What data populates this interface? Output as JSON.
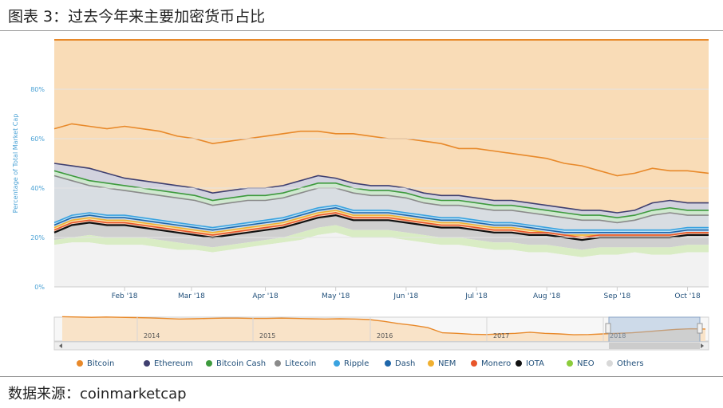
{
  "title": "图表 3：过去今年来主要加密货币占比",
  "source": "数据来源：coinmarketcap",
  "chart_data": {
    "type": "area",
    "stacking": "percent",
    "ylabel": "Percentage of Total Market Cap",
    "ylim": [
      0,
      100
    ],
    "yticks": [
      "0%",
      "20%",
      "40%",
      "60%",
      "80%"
    ],
    "ytick_values": [
      0,
      20,
      40,
      60,
      80
    ],
    "xticks": [
      "Feb '18",
      "Mar '18",
      "Apr '18",
      "May '18",
      "Jun '18",
      "Jul '18",
      "Aug '18",
      "Sep '18",
      "Oct '18"
    ],
    "xtick_positions": [
      1.0,
      1.95,
      3.0,
      4.0,
      5.0,
      6.0,
      7.0,
      8.0,
      9.0
    ],
    "x": [
      0.0,
      0.25,
      0.5,
      0.75,
      1.0,
      1.25,
      1.5,
      1.75,
      2.0,
      2.25,
      2.5,
      2.75,
      3.0,
      3.25,
      3.5,
      3.75,
      4.0,
      4.25,
      4.5,
      4.75,
      5.0,
      5.25,
      5.5,
      5.75,
      6.0,
      6.25,
      6.5,
      6.75,
      7.0,
      7.25,
      7.5,
      7.75,
      8.0,
      8.25,
      8.5,
      8.75,
      9.0,
      9.3
    ],
    "boundaries": {
      "x_ref": "cumulative top edge of each series, in percent",
      "others_top": [
        17,
        18,
        18,
        17,
        17,
        17,
        16,
        15,
        15,
        14,
        15,
        16,
        17,
        18,
        19,
        21,
        22,
        20,
        20,
        20,
        19,
        18,
        17,
        17,
        16,
        15,
        15,
        14,
        14,
        13,
        12,
        13,
        13,
        14,
        13,
        13,
        14,
        14
      ],
      "neo_top": [
        19,
        20,
        21,
        20,
        20,
        20,
        19,
        18,
        17,
        16,
        17,
        18,
        19,
        20,
        22,
        24,
        25,
        23,
        23,
        23,
        22,
        21,
        20,
        20,
        19,
        18,
        18,
        17,
        17,
        16,
        15,
        16,
        16,
        16,
        16,
        16,
        17,
        17
      ],
      "iota_top": [
        22,
        25,
        26,
        25,
        25,
        24,
        23,
        22,
        21,
        20,
        21,
        22,
        23,
        24,
        26,
        28,
        29,
        27,
        27,
        27,
        26,
        25,
        24,
        24,
        23,
        22,
        22,
        21,
        21,
        20,
        19,
        20,
        20,
        20,
        20,
        20,
        21,
        21
      ],
      "monero_top": [
        23,
        26,
        27,
        26,
        26,
        25,
        24,
        23,
        22,
        21,
        22,
        23,
        24,
        25,
        27,
        29,
        30,
        28,
        28,
        28,
        27,
        26,
        25,
        25,
        24,
        23,
        23,
        22,
        22,
        21,
        20,
        21,
        21,
        21,
        21,
        21,
        22,
        22
      ],
      "nem_top": [
        24,
        27,
        28,
        27,
        27,
        26,
        25,
        24,
        23,
        22,
        23,
        24,
        25,
        26,
        28,
        30,
        31,
        29,
        29,
        29,
        28,
        27,
        26,
        26,
        25,
        24,
        24,
        23,
        22,
        21,
        21,
        21,
        21,
        21,
        21,
        21,
        22,
        22
      ],
      "dash_top": [
        25,
        28,
        29,
        28,
        28,
        27,
        26,
        25,
        24,
        23,
        24,
        25,
        26,
        27,
        29,
        31,
        32,
        30,
        30,
        30,
        29,
        28,
        27,
        27,
        26,
        25,
        25,
        24,
        23,
        22,
        22,
        22,
        22,
        22,
        22,
        22,
        23,
        23
      ],
      "ripple_top": [
        26,
        29,
        30,
        29,
        29,
        28,
        27,
        26,
        25,
        24,
        25,
        26,
        27,
        28,
        30,
        32,
        33,
        31,
        31,
        31,
        30,
        29,
        28,
        28,
        27,
        26,
        26,
        25,
        24,
        23,
        23,
        23,
        23,
        23,
        23,
        23,
        24,
        24
      ],
      "litecoin_top": [
        45,
        43,
        41,
        40,
        39,
        38,
        37,
        36,
        35,
        33,
        34,
        35,
        35,
        36,
        38,
        40,
        40,
        38,
        37,
        37,
        36,
        34,
        33,
        33,
        32,
        31,
        31,
        30,
        29,
        28,
        27,
        27,
        26,
        27,
        29,
        30,
        29,
        29
      ],
      "bch_top": [
        47,
        45,
        43,
        42,
        41,
        40,
        39,
        38,
        37,
        35,
        36,
        37,
        37,
        38,
        40,
        42,
        42,
        40,
        39,
        39,
        38,
        36,
        35,
        35,
        34,
        33,
        33,
        32,
        31,
        30,
        29,
        29,
        28,
        29,
        31,
        32,
        31,
        31
      ],
      "ethereum_top": [
        50,
        49,
        48,
        46,
        44,
        43,
        42,
        41,
        40,
        38,
        39,
        40,
        40,
        41,
        43,
        45,
        44,
        42,
        41,
        41,
        40,
        38,
        37,
        37,
        36,
        35,
        35,
        34,
        33,
        32,
        31,
        31,
        30,
        31,
        34,
        35,
        34,
        34
      ],
      "bitcoin_top": [
        64,
        66,
        65,
        64,
        65,
        64,
        63,
        61,
        60,
        58,
        59,
        60,
        61,
        62,
        63,
        63,
        62,
        62,
        61,
        60,
        60,
        59,
        58,
        56,
        56,
        55,
        54,
        53,
        52,
        50,
        49,
        47,
        45,
        46,
        48,
        47,
        47,
        46
      ]
    },
    "series": [
      {
        "name": "Bitcoin",
        "color": "#e8892a"
      },
      {
        "name": "Ethereum",
        "color": "#3f3f6f"
      },
      {
        "name": "Bitcoin Cash",
        "color": "#3d9a3d"
      },
      {
        "name": "Litecoin",
        "color": "#8a8a8a"
      },
      {
        "name": "Ripple",
        "color": "#3aa3e0"
      },
      {
        "name": "Dash",
        "color": "#1e66aa"
      },
      {
        "name": "NEM",
        "color": "#f0b030"
      },
      {
        "name": "Monero",
        "color": "#e8552a"
      },
      {
        "name": "IOTA",
        "color": "#111111"
      },
      {
        "name": "NEO",
        "color": "#8ccc3c"
      },
      {
        "name": "Others",
        "color": "#d8d8d8"
      }
    ],
    "navigator": {
      "labels": [
        "2014",
        "2015",
        "2016",
        "2017",
        "2018"
      ],
      "values": [
        96,
        95,
        94,
        95,
        94,
        93,
        92,
        90,
        88,
        89,
        90,
        91,
        91,
        90,
        90,
        91,
        90,
        89,
        88,
        89,
        88,
        86,
        80,
        72,
        66,
        58,
        40,
        38,
        35,
        34,
        36,
        38,
        42,
        38,
        36,
        33,
        34,
        36,
        38,
        40,
        44,
        48,
        52,
        54,
        53
      ]
    },
    "grid": true,
    "legend_position": "bottom"
  }
}
